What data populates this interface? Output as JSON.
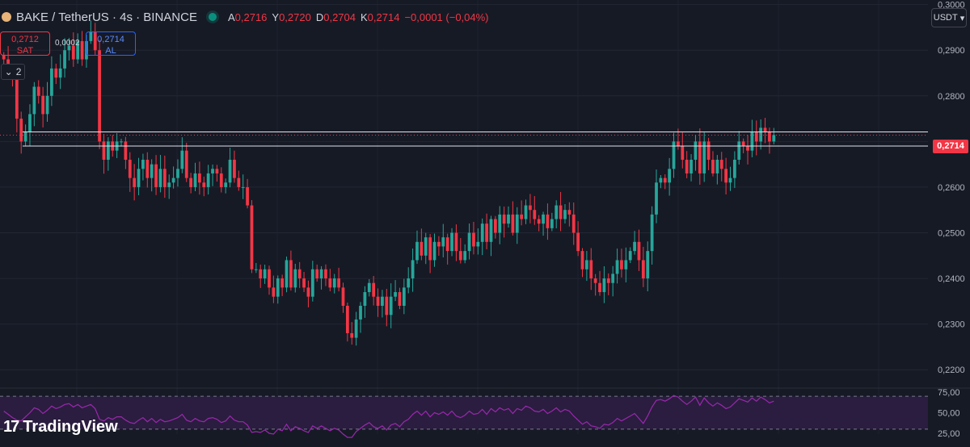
{
  "header": {
    "symbol": "BAKE / TetherUS · 4s · BINANCE",
    "ohlc": [
      {
        "k": "A",
        "v": "0,2716"
      },
      {
        "k": "Y",
        "v": "0,2720"
      },
      {
        "k": "D",
        "v": "0,2704"
      },
      {
        "k": "K",
        "v": "0,2714"
      }
    ],
    "change": "−0,0001 (−0,04%)"
  },
  "trade": {
    "sell_price": "0,2712",
    "sell_label": "SAT",
    "spread": "0,0002",
    "buy_price": "0,2714",
    "buy_label": "AL"
  },
  "indicator_toggle": "2",
  "currency_button": "USDT",
  "last_price": "0,2714",
  "branding": "TradingView",
  "colors": {
    "background": "#161a25",
    "up": "#26a69a",
    "down": "#f23645",
    "rsi_line": "#9c27b0",
    "rsi_band": "#2a1d3f"
  },
  "chart_data": [
    {
      "type": "candlestick",
      "title": "BAKE / TetherUS · 4s · BINANCE",
      "y_ticks": [
        "0,3000",
        "0,2900",
        "0,2800",
        "0,2600",
        "0,2500",
        "0,2400",
        "0,2300",
        "0,2200"
      ],
      "ylim": [
        0.2165,
        0.301
      ],
      "grid": true,
      "last_price": 0.2714,
      "horizontal_levels": [
        0.2721,
        0.269
      ],
      "series": [
        {
          "close": [
            0.288,
            0.286,
            0.284,
            0.275,
            0.27,
            0.272,
            0.276,
            0.282,
            0.28,
            0.276,
            0.28,
            0.286,
            0.284,
            0.286,
            0.29,
            0.291,
            0.288,
            0.292,
            0.288,
            0.292,
            0.294,
            0.29,
            0.27,
            0.266,
            0.27,
            0.268,
            0.27,
            0.27,
            0.266,
            0.262,
            0.26,
            0.264,
            0.266,
            0.262,
            0.265,
            0.26,
            0.264,
            0.26,
            0.261,
            0.262,
            0.264,
            0.268,
            0.262,
            0.26,
            0.263,
            0.261,
            0.26,
            0.263,
            0.264,
            0.263,
            0.26,
            0.261,
            0.266,
            0.262,
            0.26,
            0.26,
            0.256,
            0.242,
            0.242,
            0.24,
            0.242,
            0.238,
            0.236,
            0.24,
            0.238,
            0.244,
            0.238,
            0.242,
            0.24,
            0.238,
            0.236,
            0.242,
            0.24,
            0.242,
            0.24,
            0.238,
            0.24,
            0.238,
            0.234,
            0.228,
            0.227,
            0.231,
            0.234,
            0.237,
            0.239,
            0.236,
            0.234,
            0.236,
            0.232,
            0.236,
            0.237,
            0.234,
            0.238,
            0.24,
            0.244,
            0.248,
            0.245,
            0.249,
            0.244,
            0.248,
            0.247,
            0.249,
            0.246,
            0.25,
            0.246,
            0.244,
            0.246,
            0.25,
            0.247,
            0.248,
            0.252,
            0.248,
            0.253,
            0.25,
            0.254,
            0.252,
            0.254,
            0.25,
            0.254,
            0.253,
            0.256,
            0.255,
            0.253,
            0.252,
            0.254,
            0.251,
            0.253,
            0.256,
            0.253,
            0.255,
            0.254,
            0.25,
            0.246,
            0.242,
            0.244,
            0.24,
            0.239,
            0.237,
            0.24,
            0.239,
            0.241,
            0.244,
            0.242,
            0.244,
            0.246,
            0.248,
            0.244,
            0.24,
            0.246,
            0.254,
            0.261,
            0.262,
            0.261,
            0.264,
            0.27,
            0.269,
            0.266,
            0.263,
            0.266,
            0.27,
            0.263,
            0.27,
            0.266,
            0.263,
            0.266,
            0.264,
            0.261,
            0.262,
            0.266,
            0.27,
            0.269,
            0.268,
            0.272,
            0.27,
            0.273,
            0.272,
            0.27,
            0.2714
          ],
          "volume_like_rsi": [
            52,
            48,
            44,
            41,
            40,
            45,
            50,
            56,
            54,
            49,
            53,
            58,
            55,
            57,
            60,
            61,
            57,
            60,
            56,
            58,
            60,
            55,
            42,
            40,
            44,
            42,
            45,
            45,
            41,
            38,
            37,
            41,
            44,
            39,
            43,
            38,
            42,
            39,
            40,
            42,
            44,
            48,
            41,
            39,
            43,
            40,
            39,
            43,
            44,
            42,
            38,
            40,
            46,
            41,
            39,
            39,
            35,
            26,
            27,
            26,
            29,
            25,
            24,
            30,
            28,
            36,
            28,
            33,
            31,
            28,
            26,
            34,
            31,
            34,
            31,
            28,
            31,
            29,
            24,
            20,
            20,
            27,
            31,
            35,
            38,
            33,
            31,
            34,
            29,
            35,
            37,
            33,
            39,
            42,
            48,
            52,
            47,
            52,
            45,
            50,
            48,
            51,
            47,
            52,
            46,
            44,
            47,
            52,
            48,
            49,
            54,
            48,
            55,
            51,
            56,
            53,
            55,
            49,
            55,
            53,
            58,
            56,
            52,
            51,
            54,
            49,
            52,
            56,
            51,
            54,
            52,
            46,
            41,
            36,
            39,
            34,
            33,
            31,
            36,
            35,
            38,
            43,
            40,
            43,
            46,
            49,
            43,
            37,
            46,
            57,
            65,
            66,
            64,
            67,
            71,
            69,
            64,
            60,
            64,
            69,
            59,
            68,
            62,
            58,
            62,
            59,
            55,
            57,
            62,
            67,
            65,
            63,
            68,
            64,
            69,
            66,
            62,
            64
          ]
        }
      ]
    },
    {
      "type": "line",
      "name": "RSI",
      "y_ticks": [
        "75,00",
        "50,00",
        "25,00"
      ],
      "ylim": [
        24,
        76
      ],
      "band": [
        30,
        70
      ]
    }
  ]
}
